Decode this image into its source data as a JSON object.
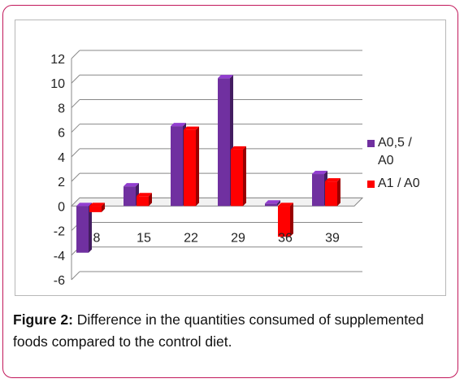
{
  "caption": {
    "label": "Figure 2:",
    "text": " Difference in the quantities consumed of supplemented foods compared to the control diet."
  },
  "colors": {
    "series_a05": "#7030a0",
    "series_a1": "#ff0000",
    "frame": "#c2185b",
    "grid": "#888888"
  },
  "chart_data": {
    "type": "bar",
    "categories": [
      "8",
      "15",
      "22",
      "29",
      "36",
      "39"
    ],
    "series": [
      {
        "name": "A0,5 / A0",
        "values": [
          -3.8,
          1.6,
          6.5,
          10.4,
          0.2,
          2.6
        ]
      },
      {
        "name": "A1 / A0",
        "values": [
          -0.5,
          0.8,
          6.2,
          4.6,
          -2.5,
          2.0
        ]
      }
    ],
    "yticks": [
      "12",
      "10",
      "8",
      "6",
      "4",
      "2",
      "0",
      "-2",
      "-4",
      "-6"
    ],
    "ylim": [
      -6,
      12
    ],
    "grid": true,
    "legend": "right",
    "style": "3d-column"
  }
}
